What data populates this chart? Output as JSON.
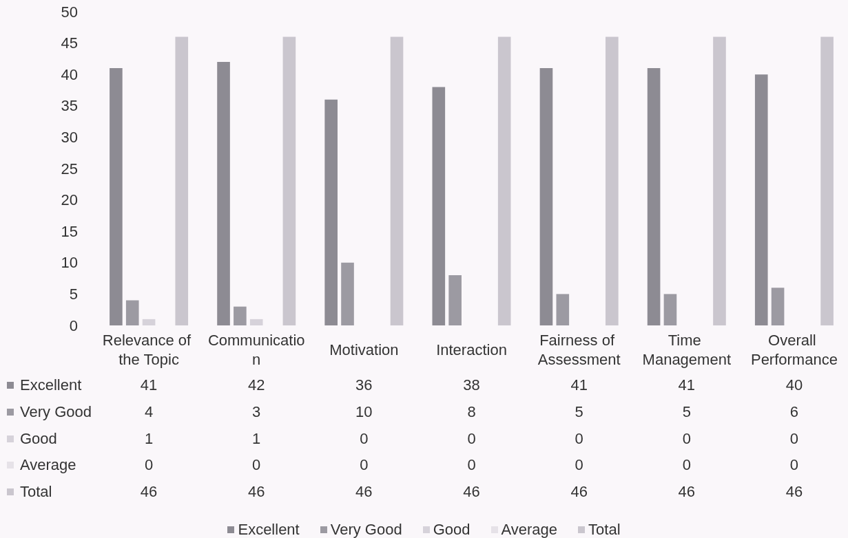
{
  "chart_data": {
    "type": "bar",
    "categories": [
      "Relevance of the Topic",
      "Communication",
      "Motivation",
      "Interaction",
      "Fairness of Assessment",
      "Time Management",
      "Overall Performance"
    ],
    "series": [
      {
        "name": "Excellent",
        "color": "#8d8b93",
        "values": [
          41,
          42,
          36,
          38,
          41,
          41,
          40
        ]
      },
      {
        "name": "Very Good",
        "color": "#9c9aa2",
        "values": [
          4,
          3,
          10,
          8,
          5,
          5,
          6
        ]
      },
      {
        "name": "Good",
        "color": "#d6d2da",
        "values": [
          1,
          1,
          0,
          0,
          0,
          0,
          0
        ]
      },
      {
        "name": "Average",
        "color": "#e6e2e8",
        "values": [
          0,
          0,
          0,
          0,
          0,
          0,
          0
        ]
      },
      {
        "name": "Total",
        "color": "#cac6ce",
        "values": [
          46,
          46,
          46,
          46,
          46,
          46,
          46
        ]
      }
    ],
    "ylim": [
      0,
      50
    ],
    "yticks": [
      0,
      5,
      10,
      15,
      20,
      25,
      30,
      35,
      40,
      45,
      50
    ],
    "grid": false,
    "legend": "bottom",
    "data_labels": true
  }
}
